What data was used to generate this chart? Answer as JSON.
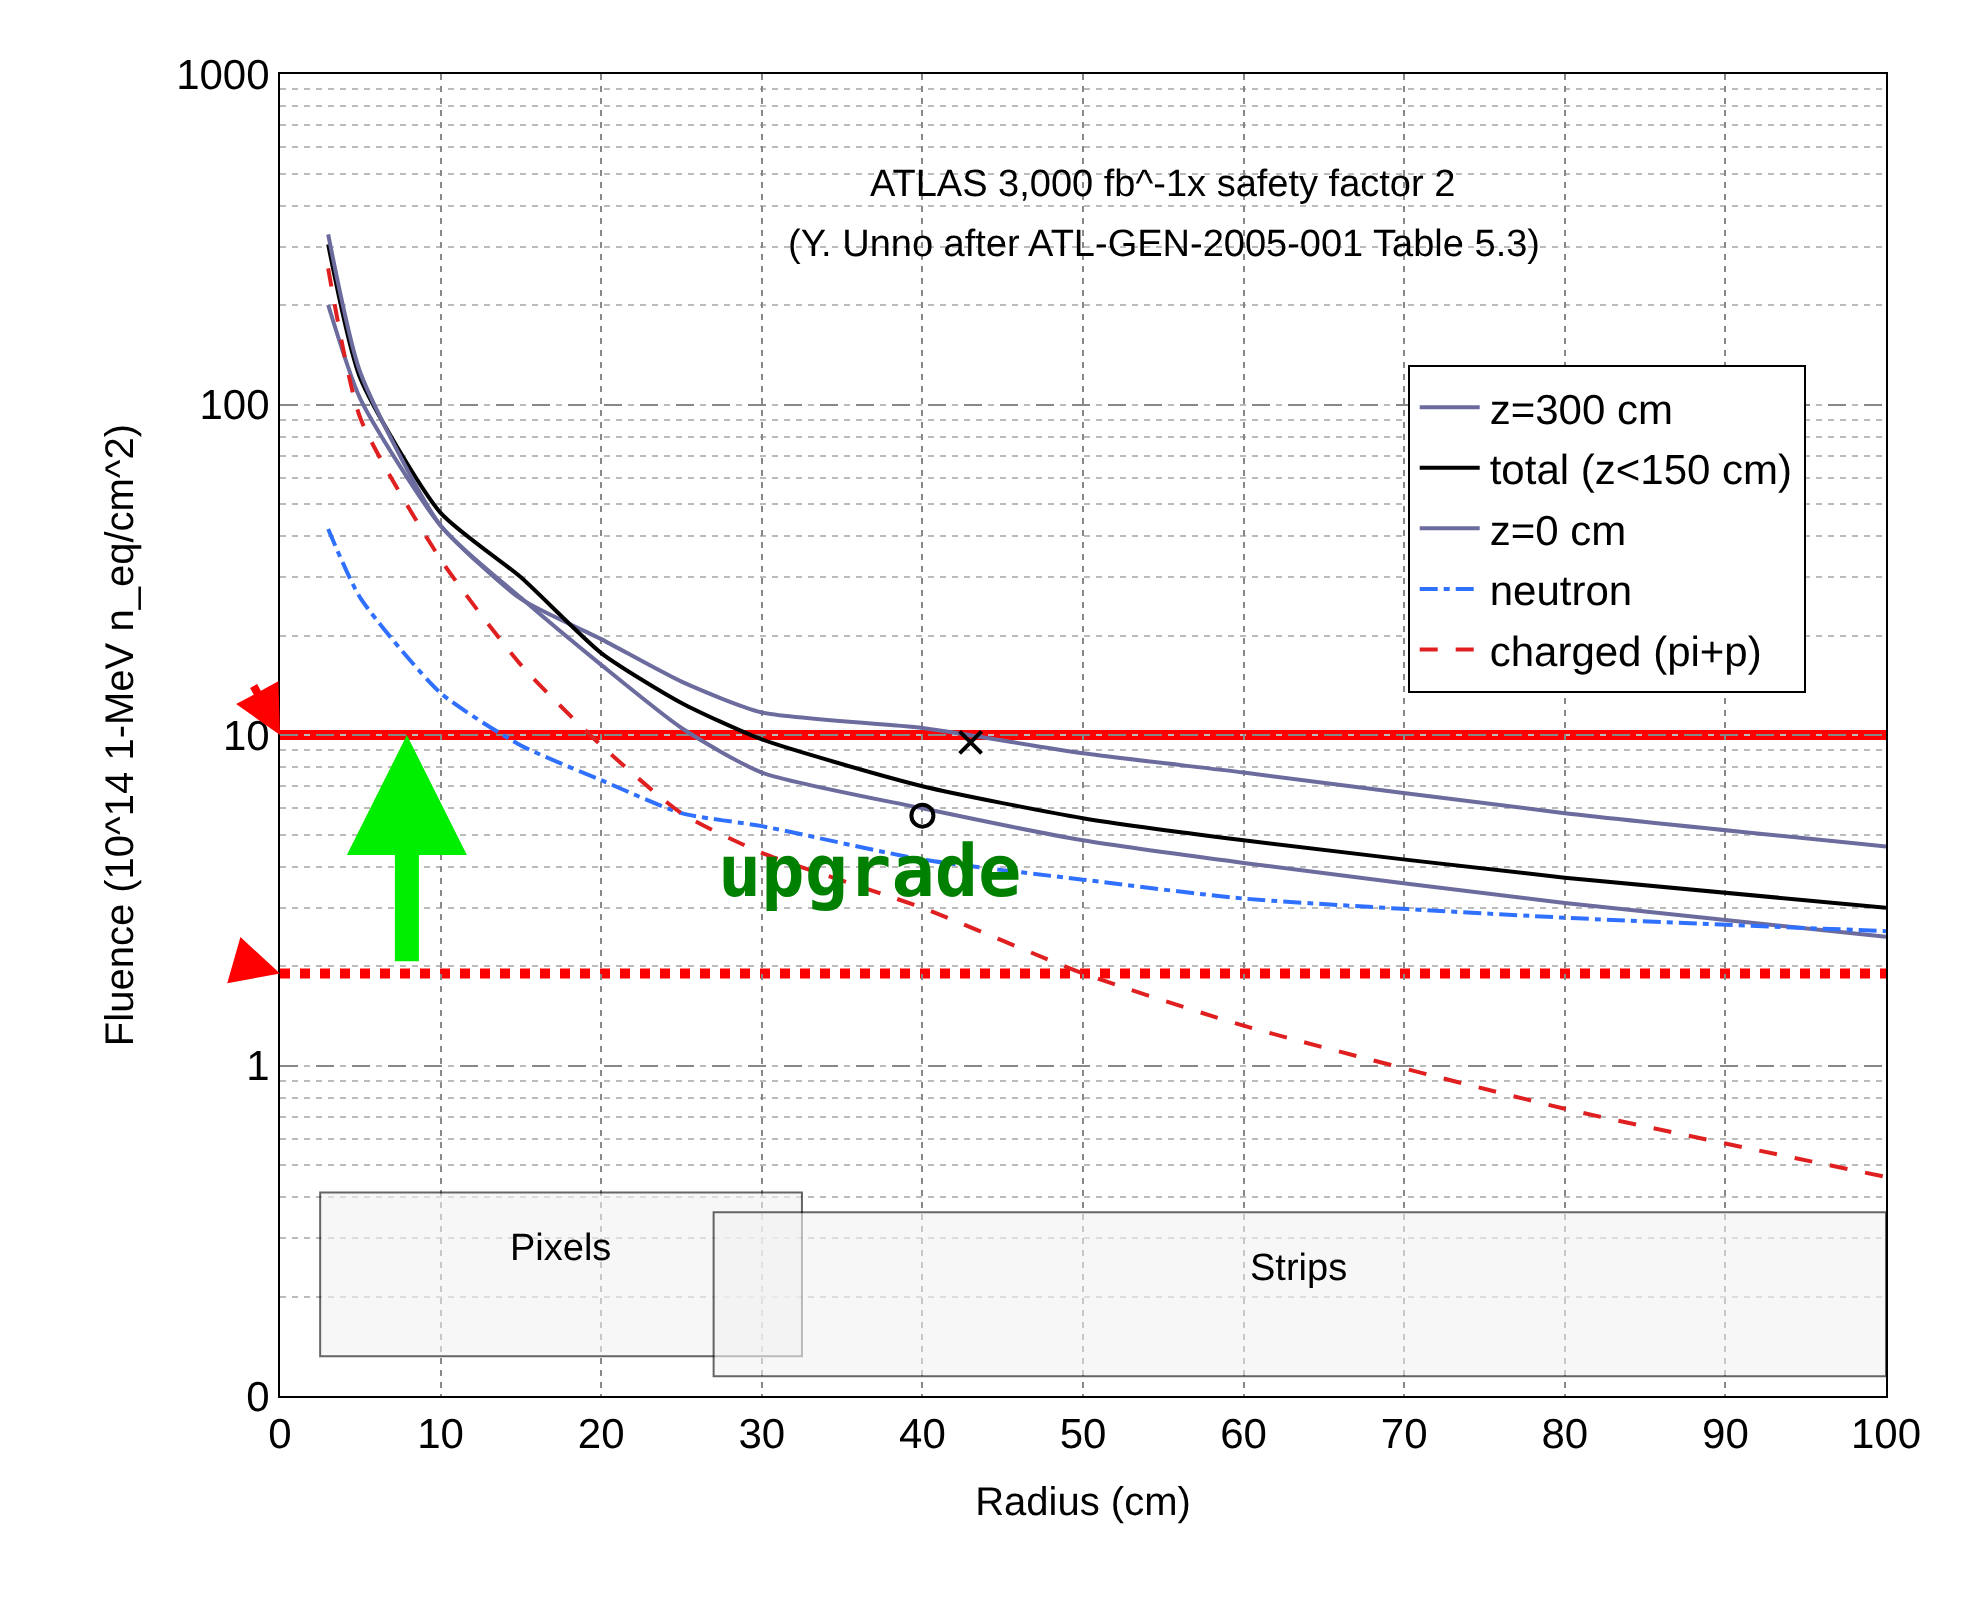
{
  "chart_data": {
    "type": "line",
    "title": "ATLAS 3,000 fb^-1x safety factor 2",
    "subtitle": "(Y. Unno after ATL-GEN-2005-001 Table 5.3)",
    "xlabel": "Radius (cm)",
    "ylabel": "Fluence (10^14 1-MeV n_eq/cm^2)",
    "x": [
      3,
      5,
      10,
      15,
      20,
      25,
      30,
      40,
      50,
      60,
      80,
      100
    ],
    "series": [
      {
        "name": "z=300 cm",
        "color": "#6b6b9e",
        "values": [
          200,
          104,
          43,
          25.8,
          19.5,
          14.5,
          11.7,
          10.5,
          8.8,
          7.7,
          5.8,
          4.6
        ]
      },
      {
        "name": "total (z<150 cm)",
        "color": "#000000",
        "values": [
          305,
          120,
          47,
          30,
          17.7,
          12.5,
          9.7,
          7.0,
          5.6,
          4.8,
          3.7,
          3.0
        ]
      },
      {
        "name": "z=0 cm",
        "color": "#6b6b9e",
        "values": [
          327,
          125,
          43,
          26,
          16.3,
          10.5,
          7.7,
          6.0,
          4.8,
          4.1,
          3.1,
          2.45
        ]
      },
      {
        "name": "neutron",
        "color": "#3070ff",
        "line_style": "dashdot",
        "values": [
          42,
          26,
          13.4,
          9.3,
          7.3,
          5.8,
          5.3,
          4.2,
          3.65,
          3.2,
          2.8,
          2.55
        ]
      },
      {
        "name": "charged (pi+p)",
        "color": "#e02020",
        "line_style": "dashed",
        "values": [
          258,
          91,
          34,
          16.3,
          9.3,
          5.8,
          4.4,
          3.0,
          1.9,
          1.32,
          0.74,
          0.46
        ]
      },
      {
        "type": "scatter",
        "marker": "cross",
        "color": "#000000",
        "x": [
          43
        ],
        "values": [
          9.5
        ]
      },
      {
        "type": "scatter",
        "marker": "circle",
        "color": "#000000",
        "x": [
          40
        ],
        "values": [
          5.7
        ]
      }
    ],
    "log": "y",
    "xlim": [
      0,
      100
    ],
    "xticks": [
      0,
      10,
      20,
      30,
      40,
      50,
      60,
      70,
      80,
      90,
      100
    ],
    "ylim": [
      0.1,
      1000
    ],
    "yticks": [
      {
        "value": 0.1,
        "label": "0"
      },
      1,
      10,
      100,
      1000
    ],
    "grid": true,
    "legend": "top right",
    "line_style": "solid",
    "marker": "none",
    "ref_lines": [
      {
        "axis": "y",
        "value": 10,
        "color": "#ff0000",
        "line_style": "solid"
      },
      {
        "axis": "y",
        "value": 1.9,
        "color": "#ff0000",
        "line_style": "dotted"
      }
    ],
    "bands": [
      {
        "axis": "x",
        "from": 2.5,
        "to": 32.5,
        "label": "Pixels",
        "color": "#f2f2f2"
      },
      {
        "axis": "x",
        "from": 27,
        "to": 100,
        "label": "Strips",
        "color": "#f2f2f2"
      }
    ],
    "annotations": [
      "upgrade"
    ]
  }
}
